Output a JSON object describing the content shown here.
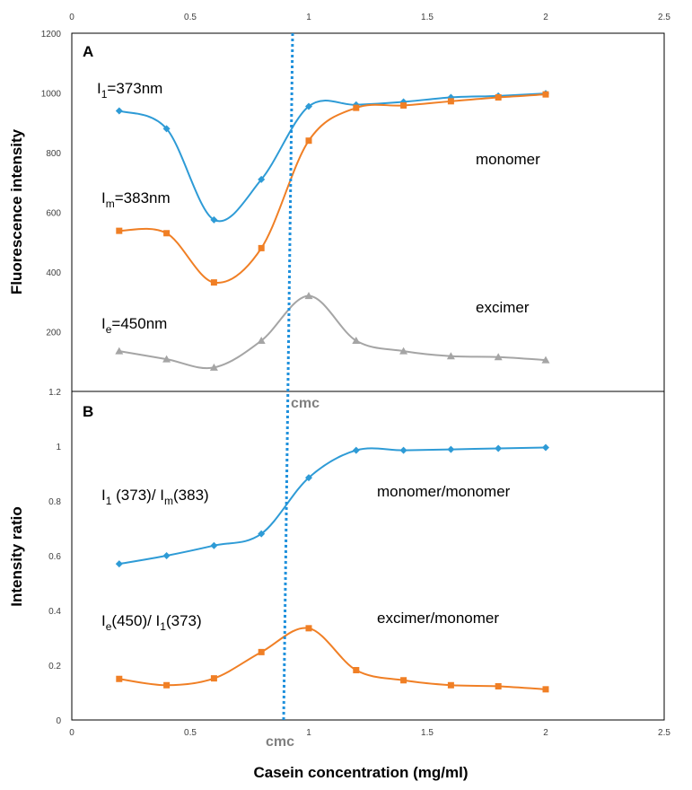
{
  "chart_data": [
    {
      "type": "line",
      "panel_label": "A",
      "ylabel": "Fluorescence intensity",
      "xlim": [
        0,
        2.5
      ],
      "ylim": [
        0,
        1200
      ],
      "x_ticks": [
        "0",
        "0.5",
        "1",
        "1.5",
        "2",
        "2.5"
      ],
      "y_ticks": [
        "200",
        "400",
        "600",
        "800",
        "1000",
        "1200"
      ],
      "x": [
        0.2,
        0.4,
        0.6,
        0.8,
        1.0,
        1.2,
        1.4,
        1.6,
        1.8,
        2.0
      ],
      "series": [
        {
          "values": [
            940,
            880,
            575,
            710,
            955,
            960,
            970,
            985,
            990,
            998
          ],
          "color": "#2E9BD6",
          "marker": "diamond"
        },
        {
          "values": [
            538,
            530,
            365,
            480,
            840,
            950,
            958,
            972,
            985,
            995
          ],
          "color": "#F07F25",
          "marker": "square"
        },
        {
          "values": [
            135,
            108,
            80,
            170,
            320,
            170,
            135,
            118,
            115,
            105
          ],
          "color": "#A5A5A5",
          "marker": "triangle"
        }
      ],
      "annotations": [
        {
          "base": "I",
          "sub": "1",
          "rest": "=373nm"
        },
        {
          "base": "I",
          "sub": "m",
          "rest": "=383nm"
        },
        {
          "base": "I",
          "sub": "e",
          "rest": "=450nm"
        },
        {
          "text": "monomer"
        },
        {
          "text": "excimer"
        }
      ],
      "grid": false
    },
    {
      "type": "line",
      "panel_label": "B",
      "ylabel": "Intensity ratio",
      "xlabel": "Casein concentration (mg/ml)",
      "xlim": [
        0,
        2.5
      ],
      "ylim": [
        0,
        1.2
      ],
      "x_ticks": [
        "0",
        "0.5",
        "1",
        "1.5",
        "2",
        "2.5"
      ],
      "y_ticks": [
        "0",
        "0.2",
        "0.4",
        "0.6",
        "0.8",
        "1",
        "1.2"
      ],
      "x": [
        0.2,
        0.4,
        0.6,
        0.8,
        1.0,
        1.2,
        1.4,
        1.6,
        1.8,
        2.0
      ],
      "series": [
        {
          "values": [
            0.57,
            0.6,
            0.637,
            0.68,
            0.885,
            0.985,
            0.985,
            0.988,
            0.992,
            0.995
          ],
          "color": "#2E9BD6",
          "marker": "diamond"
        },
        {
          "values": [
            0.15,
            0.127,
            0.152,
            0.248,
            0.335,
            0.182,
            0.145,
            0.127,
            0.123,
            0.112
          ],
          "color": "#F07F25",
          "marker": "square"
        }
      ],
      "annotations": [
        {
          "base": "I",
          "sub": "1",
          "rest": " (373)/ I",
          "sub2": "m",
          "rest2": "(383)"
        },
        {
          "base": "I",
          "sub": "e",
          "rest": "(450)/ I",
          "sub2": "1",
          "rest2": "(373)"
        },
        {
          "text": "monomer/monomer"
        },
        {
          "text": "excimer/monomer"
        }
      ],
      "grid": false
    }
  ],
  "cmc": {
    "x": 0.9,
    "label": "cmc",
    "color": "#1E90DC"
  }
}
